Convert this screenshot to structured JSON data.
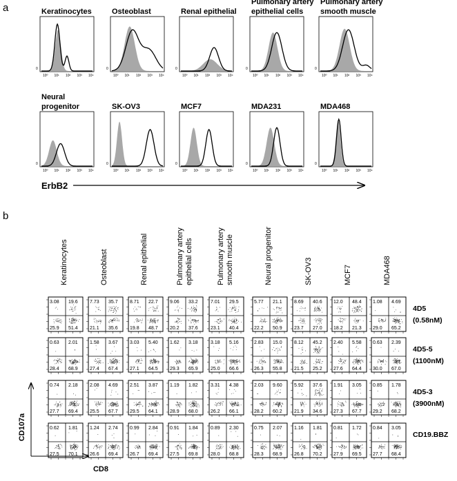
{
  "panel_a": {
    "label": "a",
    "axis_label": "ErbB2",
    "tick_labels": [
      "10⁰",
      "10¹",
      "10²",
      "10³",
      "10⁴"
    ],
    "y_tick": "0",
    "histograms": [
      {
        "title": "Keratinocytes",
        "isotype": {
          "mean": 1.3,
          "sd": 0.22,
          "h": 0.88
        },
        "erbb2": [
          {
            "mean": 1.25,
            "sd": 0.2,
            "h": 1.0
          },
          {
            "mean": 2.0,
            "sd": 0.15,
            "h": 0.32
          }
        ]
      },
      {
        "title": "Osteoblast",
        "isotype": {
          "mean": 1.4,
          "sd": 0.4,
          "h": 0.95
        },
        "erbb2": [
          {
            "mean": 1.6,
            "sd": 0.5,
            "h": 0.85
          },
          {
            "mean": 2.9,
            "sd": 0.55,
            "h": 0.45
          }
        ]
      },
      {
        "title": "Renal epithelial",
        "isotype": {
          "mean": 2.3,
          "sd": 0.55,
          "h": 0.25
        },
        "erbb2": [
          {
            "mean": 2.6,
            "sd": 0.35,
            "h": 0.5
          }
        ]
      },
      {
        "title": "Pulmonary artery epithelial cells",
        "isotype": {
          "mean": 1.7,
          "sd": 0.35,
          "h": 0.82
        },
        "erbb2": [
          {
            "mean": 2.0,
            "sd": 0.4,
            "h": 0.82
          }
        ]
      },
      {
        "title": "Pulmonary artery smooth muscle",
        "isotype": {
          "mean": 1.9,
          "sd": 0.4,
          "h": 0.9
        },
        "erbb2": [
          {
            "mean": 2.2,
            "sd": 0.45,
            "h": 0.88
          },
          {
            "mean": 3.6,
            "sd": 0.3,
            "h": 0.12
          }
        ]
      },
      {
        "title": "Neural progenitor",
        "isotype": {
          "mean": 0.9,
          "sd": 0.3,
          "h": 0.55
        },
        "erbb2": [
          {
            "mean": 1.5,
            "sd": 0.32,
            "h": 0.48
          }
        ]
      },
      {
        "title": "SK-OV3",
        "isotype": {
          "mean": 0.6,
          "sd": 0.2,
          "h": 0.95
        },
        "erbb2": [
          {
            "mean": 3.0,
            "sd": 0.3,
            "h": 0.78
          }
        ]
      },
      {
        "title": "MCF7",
        "isotype": {
          "mean": 1.0,
          "sd": 0.25,
          "h": 0.82
        },
        "erbb2": [
          {
            "mean": 2.2,
            "sd": 0.25,
            "h": 0.78
          }
        ]
      },
      {
        "title": "MDA231",
        "isotype": {
          "mean": 1.5,
          "sd": 0.3,
          "h": 0.82
        },
        "erbb2": [
          {
            "mean": 2.0,
            "sd": 0.25,
            "h": 0.82
          }
        ]
      },
      {
        "title": "MDA468",
        "isotype": {
          "mean": 1.4,
          "sd": 0.18,
          "h": 0.98
        },
        "erbb2": [
          {
            "mean": 1.45,
            "sd": 0.18,
            "h": 1.0
          }
        ]
      }
    ]
  },
  "panel_b": {
    "label": "b",
    "y_label": "CD107a",
    "x_label": "CD8",
    "columns": [
      "Keratinocytes",
      "Osteoblast",
      "Renal epithelial",
      "Pulmonary artery epithelial cells",
      "Pulmonary artery smooth muscle",
      "Neural progenitor",
      "SK-OV3",
      "MCF7",
      "MDA468"
    ],
    "rows": [
      {
        "label": "4D5",
        "sublabel": "(0.58nM)"
      },
      {
        "label": "4D5-5",
        "sublabel": "(1100nM)"
      },
      {
        "label": "4D5-3",
        "sublabel": "(3900nM)"
      },
      {
        "label": "CD19.BBZ",
        "sublabel": ""
      }
    ],
    "quadrants": [
      [
        [
          "3.08",
          "19.6",
          "25.9",
          "51.4"
        ],
        [
          "7.73",
          "35.7",
          "21.1",
          "35.6"
        ],
        [
          "8.71",
          "22.7",
          "19.8",
          "48.7"
        ],
        [
          "9.06",
          "33.2",
          "20.2",
          "37.6"
        ],
        [
          "7.01",
          "29.5",
          "23.1",
          "40.4"
        ],
        [
          "5.77",
          "21.1",
          "22.2",
          "50.9"
        ],
        [
          "8.69",
          "40.6",
          "23.7",
          "27.0"
        ],
        [
          "12.0",
          "48.4",
          "18.2",
          "21.3"
        ],
        [
          "1.08",
          "4.69",
          "29.0",
          "65.2"
        ]
      ],
      [
        [
          "0.63",
          "2.01",
          "28.4",
          "68.9"
        ],
        [
          "1.58",
          "3.67",
          "27.4",
          "67.4"
        ],
        [
          "3.03",
          "5.40",
          "27.1",
          "64.5"
        ],
        [
          "1.62",
          "3.18",
          "29.3",
          "65.9"
        ],
        [
          "3.18",
          "5.16",
          "25.0",
          "66.6"
        ],
        [
          "2.83",
          "15.0",
          "26.3",
          "55.8"
        ],
        [
          "8.12",
          "45.2",
          "21.5",
          "25.2"
        ],
        [
          "2.40",
          "5.58",
          "27.6",
          "64.4"
        ],
        [
          "0.63",
          "2.39",
          "30.0",
          "67.0"
        ]
      ],
      [
        [
          "0.74",
          "2.18",
          "27.7",
          "69.4"
        ],
        [
          "2.08",
          "4.69",
          "25.5",
          "67.7"
        ],
        [
          "2.51",
          "3.87",
          "29.5",
          "64.1"
        ],
        [
          "1.19",
          "1.82",
          "28.9",
          "68.0"
        ],
        [
          "3.31",
          "4.38",
          "26.2",
          "66.1"
        ],
        [
          "2.03",
          "9.60",
          "28.2",
          "60.2"
        ],
        [
          "5.92",
          "37.6",
          "21.9",
          "34.6"
        ],
        [
          "1.91",
          "3.05",
          "27.3",
          "67.7"
        ],
        [
          "0.85",
          "1.78",
          "29.2",
          "68.2"
        ]
      ],
      [
        [
          "0.62",
          "1.81",
          "27.5",
          "70.1"
        ],
        [
          "1.24",
          "2.74",
          "26.6",
          "69.4"
        ],
        [
          "0.99",
          "2.84",
          "26.7",
          "69.4"
        ],
        [
          "0.91",
          "1.84",
          "27.5",
          "69.8"
        ],
        [
          "0.89",
          "2.30",
          "28.0",
          "68.8"
        ],
        [
          "0.75",
          "2.07",
          "28.3",
          "68.9"
        ],
        [
          "1.16",
          "1.81",
          "26.8",
          "70.2"
        ],
        [
          "0.81",
          "1.72",
          "27.9",
          "69.5"
        ],
        [
          "0.84",
          "3.05",
          "27.7",
          "68.4"
        ]
      ]
    ]
  },
  "chart_data": [
    {
      "type": "area",
      "title": "",
      "xlabel": "ErbB2",
      "ylabel": "",
      "x_scale": "log",
      "xlim": [
        "10⁰",
        "10⁴"
      ],
      "series": [
        {
          "name": "isotype (filled grey)"
        },
        {
          "name": "ErbB2 (black line)"
        }
      ],
      "panels": [
        "Keratinocytes",
        "Osteoblast",
        "Renal epithelial",
        "Pulmonary artery epithelial cells",
        "Pulmonary artery smooth muscle",
        "Neural progenitor",
        "SK-OV3",
        "MCF7",
        "MDA231",
        "MDA468"
      ]
    },
    {
      "type": "scatter",
      "xlabel": "CD8",
      "ylabel": "CD107a",
      "quadrant_order": [
        "upper-left",
        "upper-right",
        "lower-left",
        "lower-right"
      ],
      "note_source": "quadrant percentages in panel_b.quadrants"
    }
  ]
}
